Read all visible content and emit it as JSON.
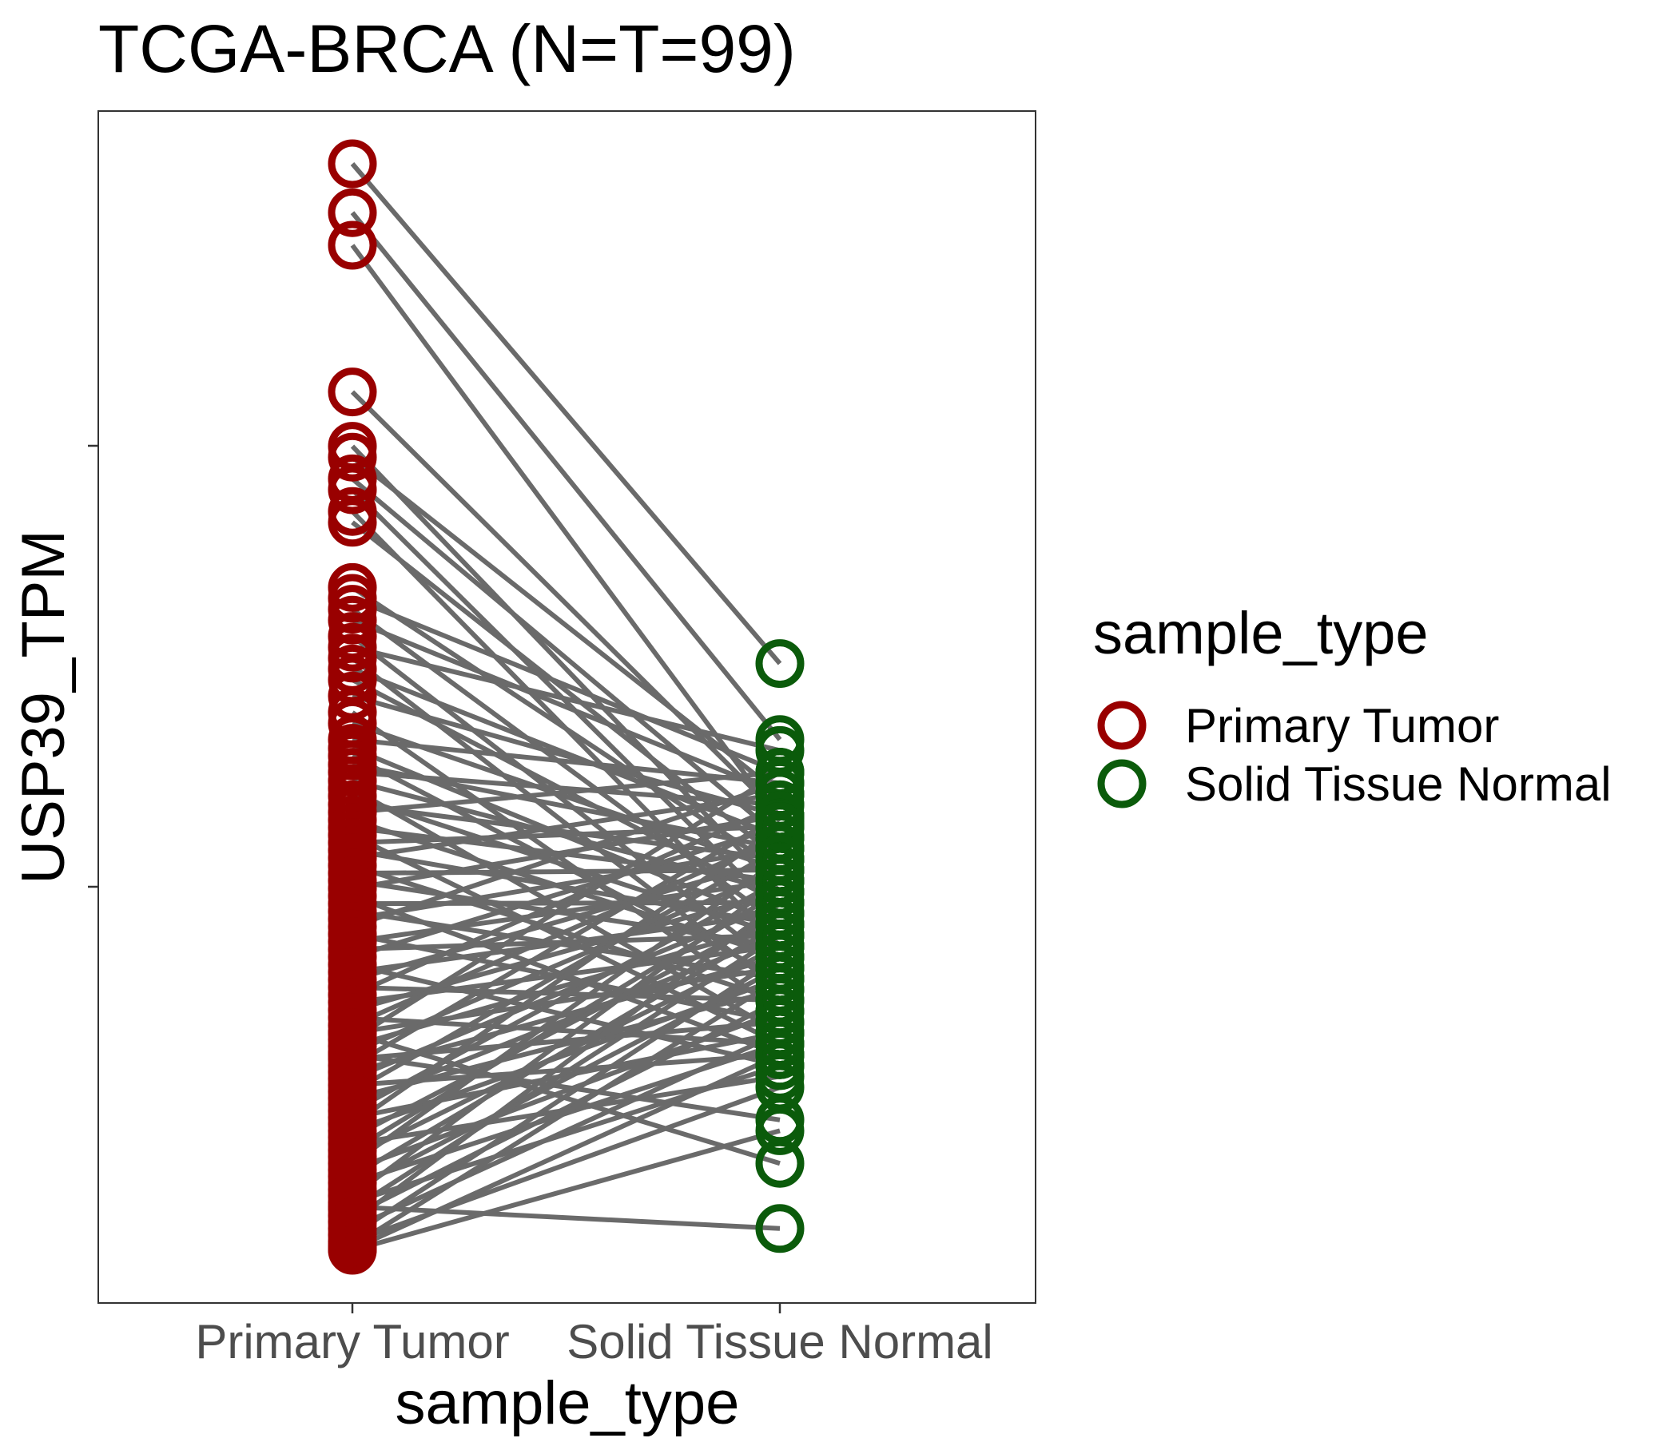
{
  "chart_data": {
    "type": "scatter",
    "subtype": "paired-dot-line",
    "title": "TCGA-BRCA  (N=T=99)",
    "xlabel": "sample_type",
    "ylabel": "USP39_TPM",
    "categories": [
      "Primary Tumor",
      "Solid Tissue Normal"
    ],
    "y_tick_labels": [],
    "ylim": [
      -0.05,
      1.05
    ],
    "legend": {
      "title": "sample_type",
      "position": "right",
      "entries": [
        "Primary Tumor",
        "Solid Tissue Normal"
      ]
    },
    "colors": {
      "Primary Tumor": "#990000",
      "Solid Tissue Normal": "#0b5b0b",
      "pair_line": "#6a6a6a"
    },
    "grid": false,
    "note_values": "relative positions on an unlabeled y-axis (0 = lowest, 1 = highest plotted value)",
    "pairs": [
      [
        1.0,
        0.54
      ],
      [
        0.955,
        0.47
      ],
      [
        0.925,
        0.395
      ],
      [
        0.79,
        0.4
      ],
      [
        0.74,
        0.33
      ],
      [
        0.73,
        0.42
      ],
      [
        0.71,
        0.38
      ],
      [
        0.7,
        0.31
      ],
      [
        0.68,
        0.28
      ],
      [
        0.67,
        0.36
      ],
      [
        0.61,
        0.35
      ],
      [
        0.6,
        0.44
      ],
      [
        0.59,
        0.3
      ],
      [
        0.58,
        0.42
      ],
      [
        0.565,
        0.26
      ],
      [
        0.555,
        0.46
      ],
      [
        0.545,
        0.24
      ],
      [
        0.535,
        0.38
      ],
      [
        0.525,
        0.32
      ],
      [
        0.51,
        0.4
      ],
      [
        0.495,
        0.22
      ],
      [
        0.485,
        0.35
      ],
      [
        0.47,
        0.43
      ],
      [
        0.462,
        0.3
      ],
      [
        0.455,
        0.25
      ],
      [
        0.447,
        0.37
      ],
      [
        0.44,
        0.41
      ],
      [
        0.432,
        0.33
      ],
      [
        0.425,
        0.2
      ],
      [
        0.418,
        0.29
      ],
      [
        0.41,
        0.36
      ],
      [
        0.403,
        0.44
      ],
      [
        0.396,
        0.27
      ],
      [
        0.389,
        0.34
      ],
      [
        0.382,
        0.19
      ],
      [
        0.375,
        0.39
      ],
      [
        0.368,
        0.3
      ],
      [
        0.361,
        0.42
      ],
      [
        0.354,
        0.23
      ],
      [
        0.347,
        0.35
      ],
      [
        0.34,
        0.28
      ],
      [
        0.333,
        0.4
      ],
      [
        0.326,
        0.18
      ],
      [
        0.319,
        0.32
      ],
      [
        0.312,
        0.25
      ],
      [
        0.305,
        0.37
      ],
      [
        0.298,
        0.43
      ],
      [
        0.291,
        0.21
      ],
      [
        0.284,
        0.34
      ],
      [
        0.277,
        0.29
      ],
      [
        0.27,
        0.39
      ],
      [
        0.263,
        0.17
      ],
      [
        0.256,
        0.31
      ],
      [
        0.249,
        0.36
      ],
      [
        0.242,
        0.23
      ],
      [
        0.235,
        0.41
      ],
      [
        0.228,
        0.28
      ],
      [
        0.221,
        0.33
      ],
      [
        0.214,
        0.19
      ],
      [
        0.207,
        0.38
      ],
      [
        0.2,
        0.26
      ],
      [
        0.194,
        0.44
      ],
      [
        0.188,
        0.3
      ],
      [
        0.182,
        0.35
      ],
      [
        0.176,
        0.21
      ],
      [
        0.17,
        0.4
      ],
      [
        0.164,
        0.27
      ],
      [
        0.158,
        0.32
      ],
      [
        0.152,
        0.18
      ],
      [
        0.146,
        0.37
      ],
      [
        0.14,
        0.24
      ],
      [
        0.134,
        0.29
      ],
      [
        0.128,
        0.34
      ],
      [
        0.122,
        0.2
      ],
      [
        0.116,
        0.39
      ],
      [
        0.11,
        0.25
      ],
      [
        0.104,
        0.31
      ],
      [
        0.098,
        0.16
      ],
      [
        0.092,
        0.33
      ],
      [
        0.086,
        0.28
      ],
      [
        0.08,
        0.36
      ],
      [
        0.074,
        0.22
      ],
      [
        0.068,
        0.3
      ],
      [
        0.062,
        0.19
      ],
      [
        0.056,
        0.26
      ],
      [
        0.05,
        0.34
      ],
      [
        0.044,
        0.17
      ],
      [
        0.038,
        0.29
      ],
      [
        0.032,
        0.23
      ],
      [
        0.026,
        0.32
      ],
      [
        0.02,
        0.2
      ],
      [
        0.014,
        0.27
      ],
      [
        0.008,
        0.15
      ],
      [
        0.004,
        0.25
      ],
      [
        0.001,
        0.18
      ],
      [
        0.2,
        0.08
      ],
      [
        0.18,
        0.12
      ],
      [
        0.04,
        0.02
      ],
      [
        0.0,
        0.11
      ]
    ]
  }
}
